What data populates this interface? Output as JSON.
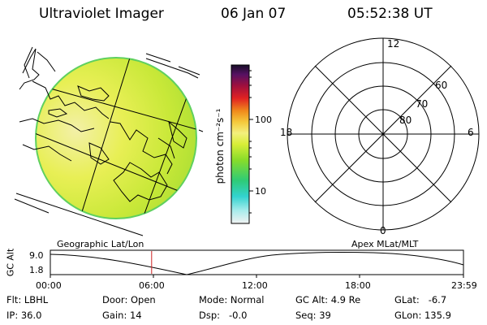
{
  "header": {
    "title": "Ultraviolet Imager",
    "date": "06 Jan 07",
    "time": "05:52:38 UT"
  },
  "colorbar": {
    "unit_label": "photon cm⁻²s⁻¹",
    "ticks": [
      "100",
      "10"
    ],
    "scale": "log"
  },
  "polar": {
    "mlt_labels": {
      "top": "12",
      "left": "18",
      "right": "6",
      "bottom": "0"
    },
    "lat_labels": [
      "60",
      "70",
      "80"
    ]
  },
  "timeline": {
    "left_title": "Geographic Lat/Lon",
    "right_title": "Apex MLat/MLT",
    "axis_title": "GC Alt",
    "y_ticks": [
      "9.0",
      "1.8"
    ],
    "x_ticks": [
      "00:00",
      "06:00",
      "12:00",
      "18:00",
      "23:59"
    ],
    "current_time_hours": 5.88
  },
  "footer": {
    "filter": "Flt: LBHL",
    "door": "Door: Open",
    "mode": "Mode: Normal",
    "gc_alt": "GC Alt: 4.9 Re",
    "glat": "GLat:   -6.7",
    "ip": "IP: 36.0",
    "gain": "Gain: 14",
    "dsp": "Dsp:   -0.0",
    "seq": "Seq: 39",
    "glon": "GLon: 135.9"
  }
}
